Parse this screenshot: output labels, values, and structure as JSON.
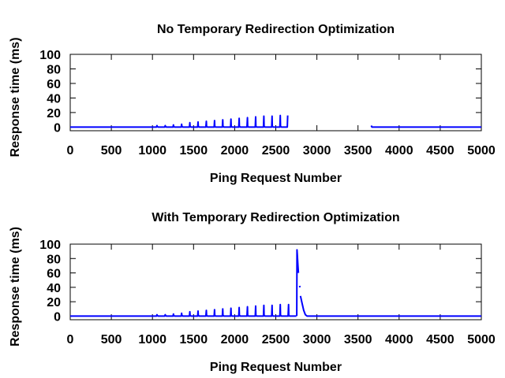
{
  "chart_data": [
    {
      "type": "line",
      "title": "No Temporary Redirection Optimization",
      "xlabel": "Ping Request Number",
      "ylabel": "Response time (ms)",
      "xlim": [
        0,
        5000
      ],
      "ylim": [
        -5,
        100
      ],
      "xticks": [
        "0",
        "500",
        "1000",
        "1500",
        "2000",
        "2500",
        "3000",
        "3500",
        "4000",
        "4500",
        "5000"
      ],
      "yticks": [
        "0",
        "20",
        "40",
        "60",
        "80",
        "100"
      ],
      "grid": false,
      "color": "#0000ff",
      "series": [
        {
          "segments": [
            {
              "x": [
                0,
                1050,
                1055,
                1058,
                1070,
                1075,
                1150,
                1155,
                1158,
                1170,
                1250,
                1255,
                1258,
                1270,
                1350,
                1355,
                1358,
                1370,
                1450,
                1455,
                1458,
                1470,
                1550,
                1555,
                1558,
                1570,
                1650,
                1655,
                1658,
                1670,
                1750,
                1755,
                1758,
                1770,
                1850,
                1855,
                1858,
                1870,
                1950,
                1955,
                1958,
                1970,
                2050,
                2055,
                2058,
                2070,
                2150,
                2155,
                2158,
                2170,
                2250,
                2255,
                2258,
                2270,
                2350,
                2355,
                2358,
                2370,
                2450,
                2455,
                2458,
                2470,
                2550,
                2555,
                2558,
                2570,
                2640,
                2645
              ],
              "y": [
                0,
                0,
                2,
                1,
                0,
                0,
                0,
                2,
                1,
                0,
                0,
                3,
                1,
                0,
                0,
                4,
                1,
                0,
                0,
                6,
                1,
                0,
                0,
                7,
                1,
                0,
                0,
                8,
                1,
                0,
                0,
                9,
                1,
                0,
                0,
                10,
                1,
                0,
                0,
                11,
                1,
                0,
                0,
                12,
                1,
                0,
                0,
                13,
                1,
                0,
                0,
                14,
                1,
                0,
                0,
                15,
                1,
                0,
                0,
                15,
                1,
                0,
                0,
                16,
                1,
                0,
                0,
                16
              ]
            },
            {
              "x": [
                3660,
                3670,
                3680,
                5000
              ],
              "y": [
                2,
                0,
                0,
                0
              ]
            }
          ]
        }
      ]
    },
    {
      "type": "line",
      "title": "With Temporary Redirection Optimization",
      "xlabel": "Ping Request Number",
      "ylabel": "Response time (ms)",
      "xlim": [
        0,
        5000
      ],
      "ylim": [
        -5,
        100
      ],
      "xticks": [
        "0",
        "500",
        "1000",
        "1500",
        "2000",
        "2500",
        "3000",
        "3500",
        "4000",
        "4500",
        "5000"
      ],
      "yticks": [
        "0",
        "20",
        "40",
        "60",
        "80",
        "100"
      ],
      "grid": false,
      "color": "#0000ff",
      "series": [
        {
          "segments": [
            {
              "x": [
                0,
                1050,
                1055,
                1058,
                1070,
                1150,
                1155,
                1158,
                1170,
                1250,
                1255,
                1258,
                1270,
                1350,
                1355,
                1358,
                1370,
                1450,
                1455,
                1458,
                1470,
                1550,
                1555,
                1558,
                1570,
                1650,
                1655,
                1658,
                1670,
                1750,
                1755,
                1758,
                1770,
                1850,
                1855,
                1858,
                1870,
                1950,
                1955,
                1958,
                1970,
                2050,
                2055,
                2058,
                2070,
                2150,
                2155,
                2158,
                2170,
                2250,
                2255,
                2258,
                2270,
                2350,
                2355,
                2358,
                2370,
                2450,
                2455,
                2458,
                2470,
                2550,
                2555,
                2558,
                2570,
                2650,
                2655,
                2658,
                2670,
                2750
              ],
              "y": [
                0,
                0,
                2,
                1,
                0,
                0,
                2,
                1,
                0,
                0,
                3,
                1,
                0,
                0,
                4,
                1,
                0,
                0,
                6,
                1,
                0,
                0,
                7,
                1,
                0,
                0,
                8,
                1,
                0,
                0,
                9,
                1,
                0,
                0,
                10,
                1,
                0,
                0,
                11,
                1,
                0,
                0,
                12,
                1,
                0,
                0,
                13,
                1,
                0,
                0,
                14,
                1,
                0,
                0,
                15,
                1,
                0,
                0,
                15,
                1,
                0,
                0,
                16,
                1,
                0,
                0,
                16,
                1,
                0,
                0
              ]
            },
            {
              "x": [
                2755,
                2758,
                2762,
                2770,
                2775
              ],
              "y": [
                0,
                92,
                85,
                70,
                60
              ]
            },
            {
              "x": [
                2790,
                2795
              ],
              "y": [
                42,
                40
              ]
            },
            {
              "x": [
                2800,
                2820,
                2840,
                2860,
                2880,
                5000
              ],
              "y": [
                28,
                18,
                8,
                2,
                0,
                0
              ]
            }
          ]
        }
      ]
    }
  ]
}
